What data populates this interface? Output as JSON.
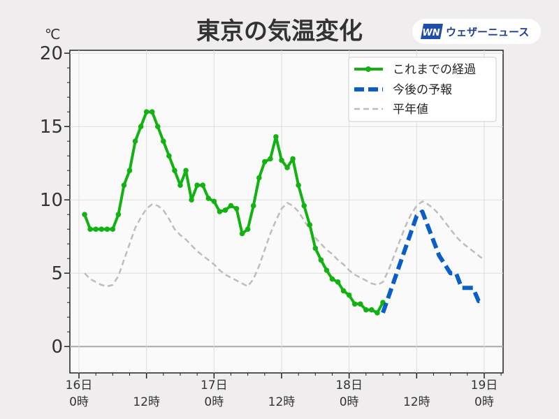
{
  "title": "東京の気温変化",
  "unit": "℃",
  "brand": {
    "logo_text": "WN",
    "name": "ウェザーニュース",
    "color": "#1f4fa8"
  },
  "chart_data": {
    "type": "line",
    "title": "東京の気温変化",
    "ylabel": "℃",
    "ylim": [
      -1.8,
      20.2
    ],
    "yticks": [
      "0",
      "5",
      "10",
      "15",
      "20"
    ],
    "grid": true,
    "legend_position": "top-right",
    "x_tick_labels": [
      {
        "hour": 0,
        "label": [
          "16日",
          "0時"
        ]
      },
      {
        "hour": 12,
        "label": [
          "",
          "12時"
        ]
      },
      {
        "hour": 24,
        "label": [
          "17日",
          "0時"
        ]
      },
      {
        "hour": 36,
        "label": [
          "",
          "12時"
        ]
      },
      {
        "hour": 48,
        "label": [
          "18日",
          "0時"
        ]
      },
      {
        "hour": 60,
        "label": [
          "",
          "12時"
        ]
      },
      {
        "hour": 72,
        "label": [
          "19日",
          "0時"
        ]
      }
    ],
    "series": [
      {
        "name": "これまでの経過",
        "color": "#11b211",
        "style": "solid-markers",
        "hours": [
          1,
          2,
          3,
          4,
          5,
          6,
          7,
          8,
          9,
          10,
          11,
          12,
          13,
          14,
          15,
          16,
          17,
          18,
          19,
          20,
          21,
          22,
          23,
          24,
          25,
          26,
          27,
          28,
          29,
          30,
          31,
          32,
          33,
          34,
          35,
          36,
          37,
          38,
          39,
          40,
          41,
          42,
          43,
          44,
          45,
          46,
          47,
          48,
          49,
          50,
          51,
          52,
          53,
          54
        ],
        "values": [
          9.0,
          8.0,
          8.0,
          8.0,
          8.0,
          8.0,
          9.0,
          11.0,
          12.0,
          14.0,
          15.0,
          16.0,
          16.0,
          15.0,
          14.0,
          13.0,
          12.0,
          11.0,
          12.0,
          10.0,
          11.0,
          11.0,
          10.1,
          9.9,
          9.2,
          9.3,
          9.6,
          9.4,
          7.7,
          8.0,
          9.6,
          11.5,
          12.6,
          12.8,
          14.3,
          12.7,
          12.2,
          12.8,
          11.0,
          9.6,
          8.3,
          6.7,
          5.9,
          5.2,
          4.6,
          4.4,
          3.8,
          3.5,
          2.9,
          2.9,
          2.5,
          2.5,
          2.3,
          3.0
        ]
      },
      {
        "name": "今後の予報",
        "color": "#0a5ec7",
        "style": "dashed-thick",
        "hours": [
          54,
          56,
          58,
          60,
          61,
          62,
          64,
          66,
          67,
          68,
          69,
          70,
          71,
          72
        ],
        "values": [
          2.3,
          4.5,
          6.7,
          8.9,
          9.2,
          8.2,
          6.2,
          5.0,
          5.0,
          4.0,
          4.0,
          4.0,
          3.1,
          3.1
        ]
      },
      {
        "name": "平年値",
        "color": "#bdbdbd",
        "style": "dashed-thin",
        "hours": [
          1,
          2,
          3,
          4,
          5,
          6,
          7,
          8,
          9,
          10,
          11,
          12,
          13,
          14,
          15,
          16,
          17,
          18,
          19,
          20,
          21,
          22,
          23,
          24,
          25,
          26,
          27,
          28,
          29,
          30,
          31,
          32,
          33,
          34,
          35,
          36,
          37,
          38,
          39,
          40,
          41,
          42,
          43,
          44,
          45,
          46,
          47,
          48,
          49,
          50,
          51,
          52,
          53,
          54,
          55,
          56,
          57,
          58,
          59,
          60,
          61,
          62,
          63,
          64,
          65,
          66,
          67,
          68,
          69,
          70,
          71,
          72
        ],
        "values": [
          5.0,
          4.6,
          4.4,
          4.2,
          4.1,
          4.2,
          4.8,
          5.9,
          7.0,
          8.1,
          8.8,
          9.4,
          9.7,
          9.6,
          9.3,
          8.7,
          8.0,
          7.6,
          7.3,
          6.9,
          6.5,
          6.2,
          5.9,
          5.6,
          5.2,
          4.9,
          4.7,
          4.5,
          4.3,
          4.1,
          4.6,
          5.5,
          6.6,
          7.7,
          8.6,
          9.4,
          9.8,
          9.6,
          9.2,
          8.6,
          8.0,
          7.4,
          7.0,
          6.6,
          6.3,
          5.9,
          5.6,
          5.2,
          4.9,
          4.7,
          4.5,
          4.3,
          4.2,
          4.4,
          5.2,
          6.2,
          7.2,
          8.2,
          9.0,
          9.6,
          9.9,
          9.7,
          9.4,
          9.0,
          8.5,
          8.0,
          7.5,
          7.1,
          6.8,
          6.5,
          6.2,
          5.9
        ]
      }
    ]
  }
}
